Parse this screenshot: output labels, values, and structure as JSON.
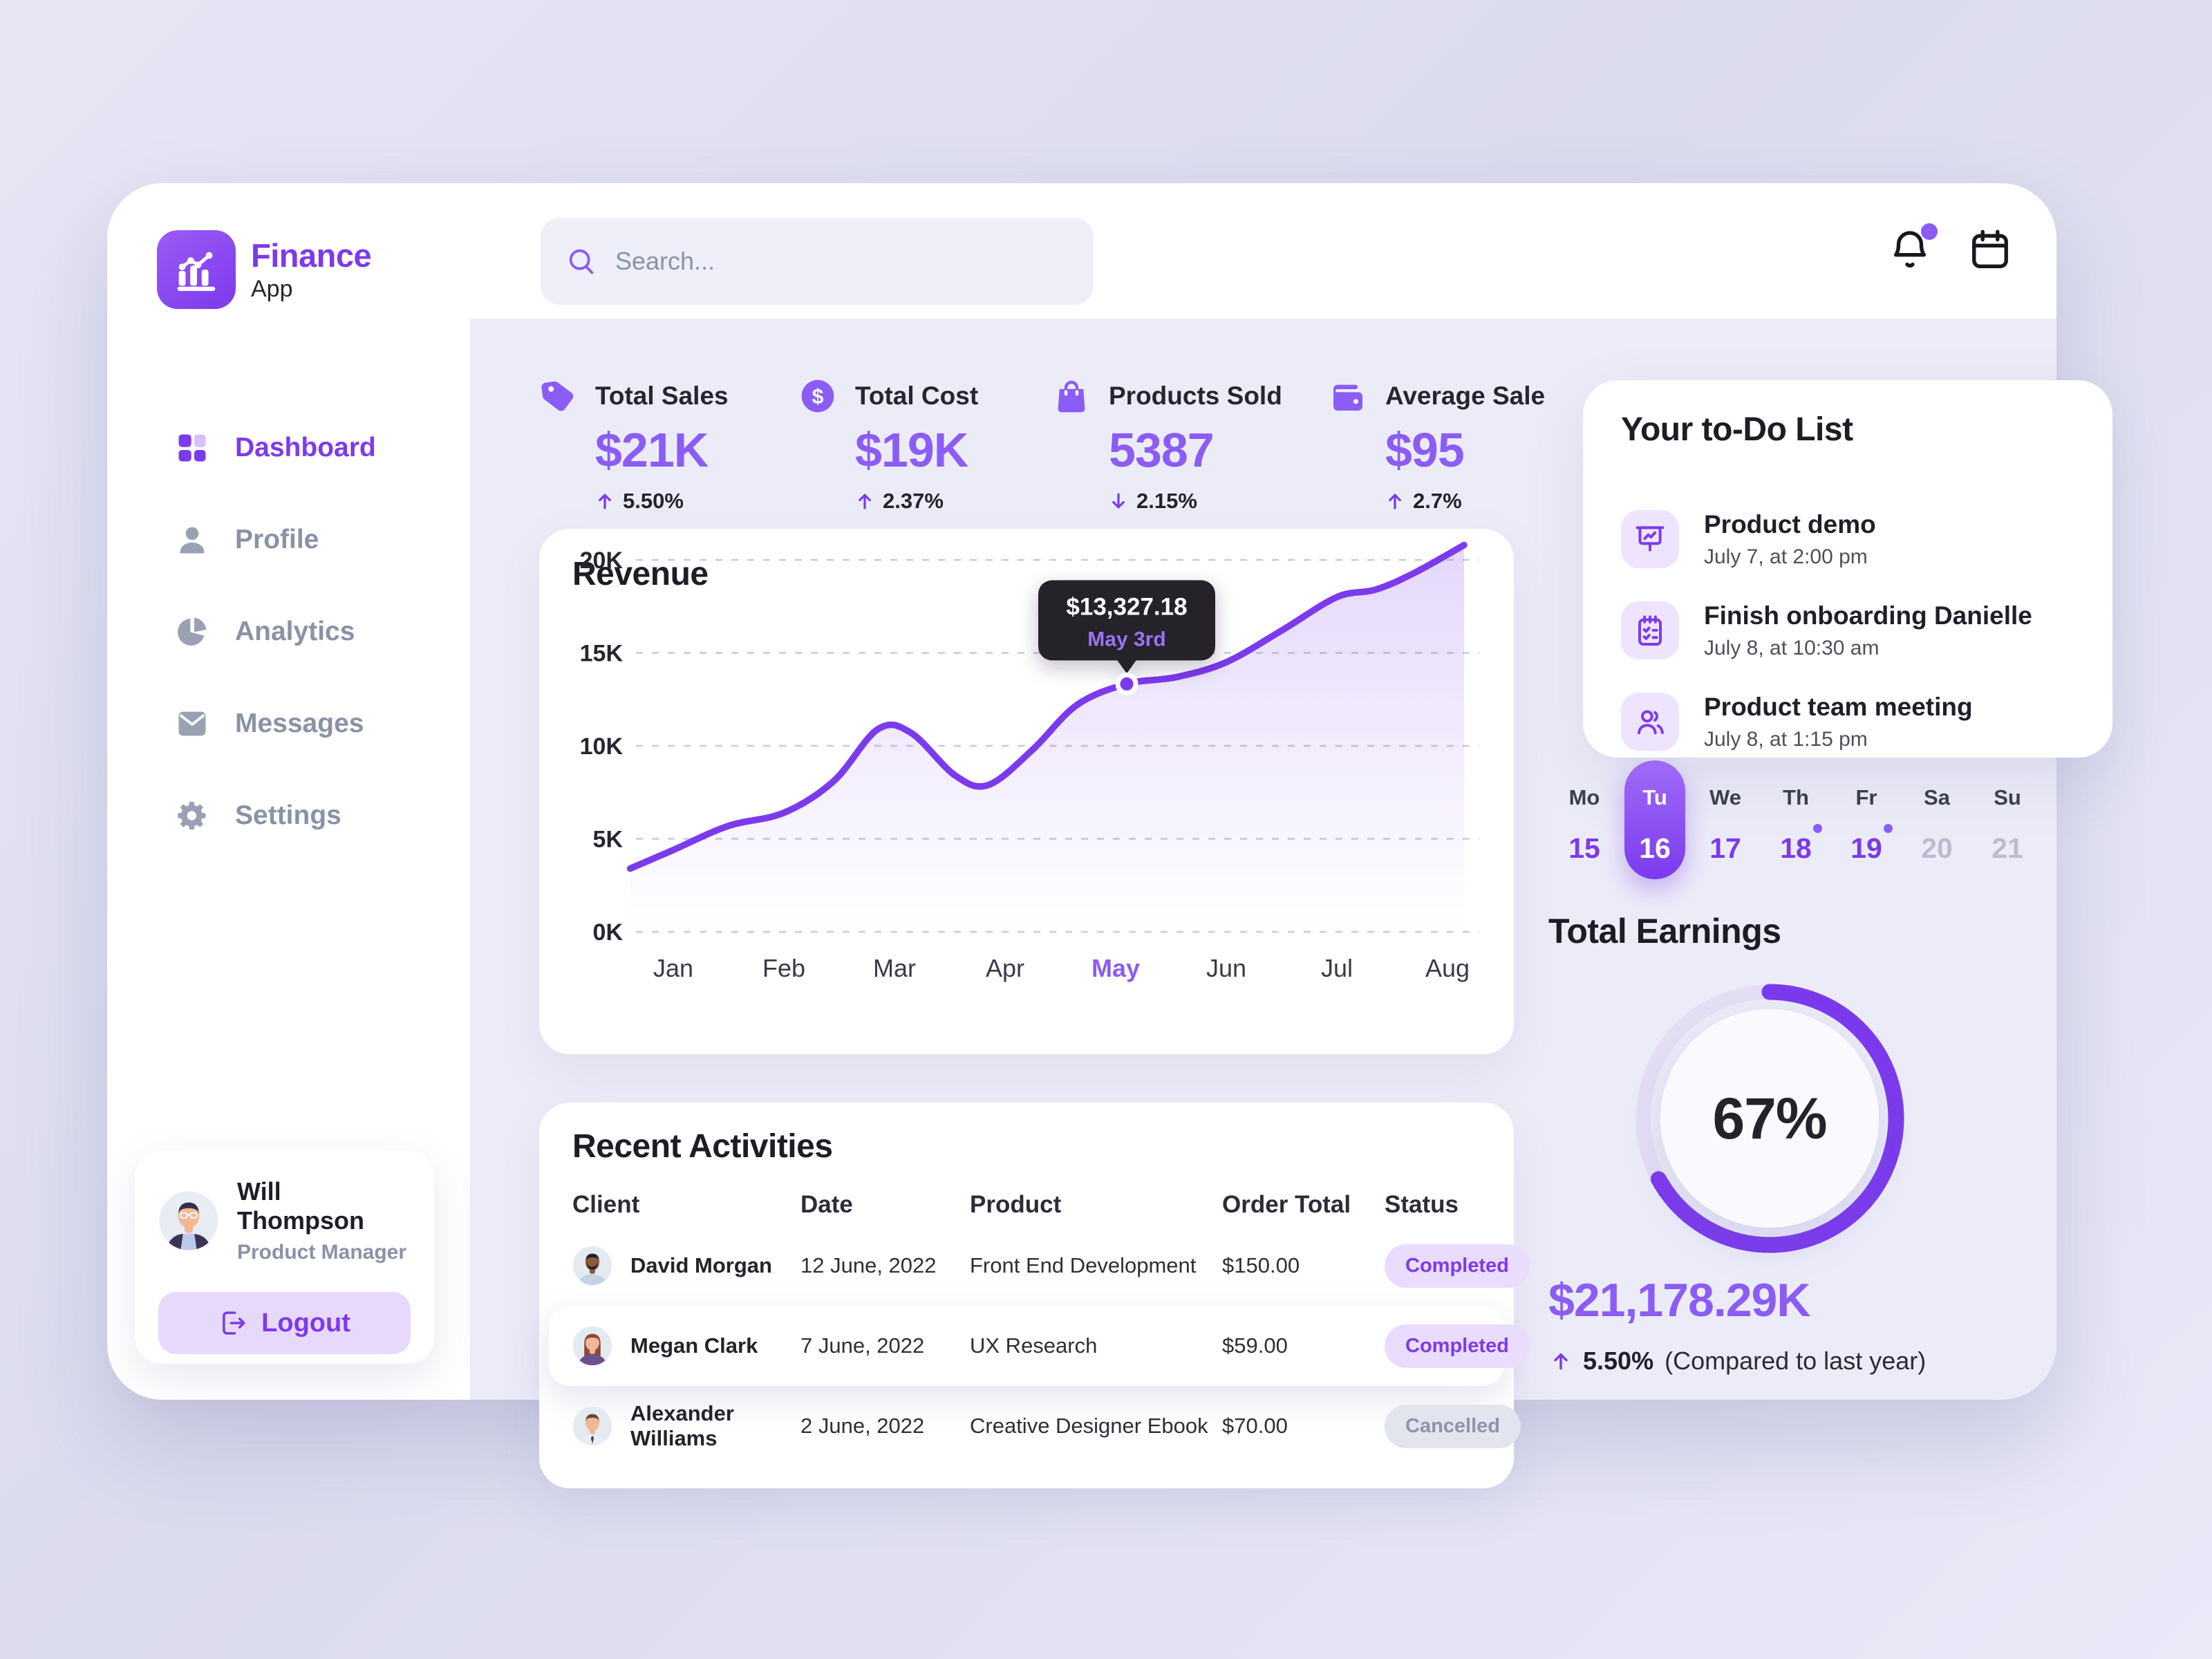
{
  "brand": {
    "name": "Finance",
    "sub": "App"
  },
  "topbar": {
    "search_placeholder": "Search...",
    "icons": [
      "bell-icon",
      "calendar-icon"
    ],
    "notification_dot": true
  },
  "sidebar": {
    "items": [
      {
        "label": "Dashboard",
        "icon": "dashboard",
        "active": true
      },
      {
        "label": "Profile",
        "icon": "user",
        "active": false
      },
      {
        "label": "Analytics",
        "icon": "pie",
        "active": false
      },
      {
        "label": "Messages",
        "icon": "mail",
        "active": false
      },
      {
        "label": "Settings",
        "icon": "gear",
        "active": false
      }
    ],
    "user": {
      "name": "Will Thompson",
      "role": "Product Manager",
      "logout_label": "Logout"
    }
  },
  "stats": [
    {
      "icon": "tag",
      "label": "Total Sales",
      "value": "$21K",
      "delta": "5.50%",
      "direction": "up"
    },
    {
      "icon": "dollar",
      "label": "Total Cost",
      "value": "$19K",
      "delta": "2.37%",
      "direction": "up"
    },
    {
      "icon": "bag",
      "label": "Products Sold",
      "value": "5387",
      "delta": "2.15%",
      "direction": "down"
    },
    {
      "icon": "wallet",
      "label": "Average Sale",
      "value": "$95",
      "delta": "2.7%",
      "direction": "up"
    }
  ],
  "chart_data": {
    "type": "area",
    "title": "Revenue",
    "x_labels": [
      "Jan",
      "Feb",
      "Mar",
      "Apr",
      "May",
      "Jun",
      "Jul",
      "Aug"
    ],
    "highlighted_x_label": "May",
    "y_ticks": [
      "0K",
      "5K",
      "10K",
      "15K",
      "20K"
    ],
    "y_grid_values": [
      0,
      5,
      10,
      15,
      20
    ],
    "ylim": [
      0,
      22
    ],
    "unit": "thousand USD",
    "grid": "dashed-horizontal",
    "legend": "none",
    "series": [
      {
        "name": "Revenue",
        "color": "#7C3AED",
        "points": [
          [
            -0.39,
            3.4
          ],
          [
            0,
            4.4
          ],
          [
            0.5,
            5.7
          ],
          [
            1,
            6.4
          ],
          [
            1.45,
            8.1
          ],
          [
            1.85,
            10.9
          ],
          [
            2.15,
            10.7
          ],
          [
            2.55,
            8.4
          ],
          [
            2.85,
            7.9
          ],
          [
            3.25,
            9.8
          ],
          [
            3.65,
            12.2
          ],
          [
            4.1,
            13.33
          ],
          [
            4.55,
            13.7
          ],
          [
            5,
            14.5
          ],
          [
            5.5,
            16.2
          ],
          [
            6,
            18.0
          ],
          [
            6.35,
            18.4
          ],
          [
            6.7,
            19.3
          ],
          [
            7.15,
            20.8
          ]
        ]
      }
    ],
    "tooltip": {
      "value": "$13,327.18",
      "date": "May 3rd",
      "x": 4.1,
      "y": 13.33
    }
  },
  "todo": {
    "title": "Your to-Do List",
    "items": [
      {
        "icon": "presentation",
        "title": "Product demo",
        "time": "July 7, at 2:00 pm"
      },
      {
        "icon": "clipboard",
        "title": "Finish onboarding Danielle",
        "time": "July 8, at 10:30 am"
      },
      {
        "icon": "users",
        "title": "Product team meeting",
        "time": "July 8, at 1:15 pm"
      }
    ]
  },
  "week": {
    "days": [
      {
        "label": "Mo",
        "num": "15",
        "state": "normal",
        "dot": false
      },
      {
        "label": "Tu",
        "num": "16",
        "state": "selected",
        "dot": false
      },
      {
        "label": "We",
        "num": "17",
        "state": "normal",
        "dot": false
      },
      {
        "label": "Th",
        "num": "18",
        "state": "normal",
        "dot": true
      },
      {
        "label": "Fr",
        "num": "19",
        "state": "normal",
        "dot": true
      },
      {
        "label": "Sa",
        "num": "20",
        "state": "muted",
        "dot": false
      },
      {
        "label": "Su",
        "num": "21",
        "state": "muted",
        "dot": false
      }
    ]
  },
  "earnings": {
    "title": "Total Earnings",
    "percent_value": 67,
    "percent": "67%",
    "value": "$21,178.29K",
    "delta": "5.50%",
    "delta_direction": "up",
    "note": "(Compared to last year)"
  },
  "activities": {
    "title": "Recent Activities",
    "columns": [
      "Client",
      "Date",
      "Product",
      "Order Total",
      "Status"
    ],
    "rows": [
      {
        "client": "David Morgan",
        "avatar": "david",
        "date": "12 June, 2022",
        "product": "Front End Development",
        "total": "$150.00",
        "status": "Completed",
        "highlight": false
      },
      {
        "client": "Megan Clark",
        "avatar": "megan",
        "date": "7 June, 2022",
        "product": "UX Research",
        "total": "$59.00",
        "status": "Completed",
        "highlight": true
      },
      {
        "client": "Alexander Williams",
        "avatar": "alexander",
        "date": "2 June, 2022",
        "product": "Creative Designer Ebook",
        "total": "$70.00",
        "status": "Cancelled",
        "highlight": false
      }
    ]
  },
  "colors": {
    "accent": "#7C3AED",
    "accent_bright": "#8B5CF6",
    "accent_chip": "#EFE4FE",
    "logout_bg": "#E7D9FC",
    "container_bg": "#ECECF8",
    "card_bg": "#FFFFFF",
    "tooltip_bg": "#26242C",
    "muted_text": "#8A92A6",
    "ink": "#1D1D26",
    "cancelled_bg": "#E2E4EE",
    "cancelled_text": "#8F94A8"
  }
}
